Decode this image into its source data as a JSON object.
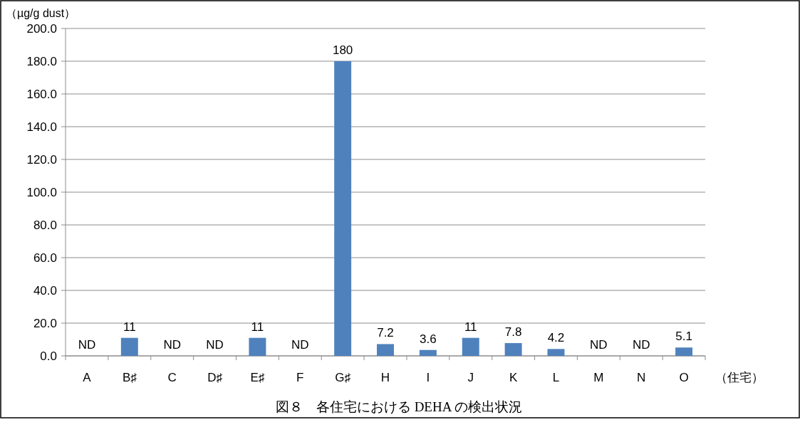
{
  "chart_data": {
    "type": "bar",
    "title": "図８　各住宅における DEHA の検出状況",
    "xlabel": "（住宅）",
    "ylabel": "（µg/g dust）",
    "categories": [
      "A",
      "B♯",
      "C",
      "D♯",
      "E♯",
      "F",
      "G♯",
      "H",
      "I",
      "J",
      "K",
      "L",
      "M",
      "N",
      "O"
    ],
    "values": [
      null,
      11,
      null,
      null,
      11,
      null,
      180,
      7.2,
      3.6,
      11,
      7.8,
      4.2,
      null,
      null,
      5.1
    ],
    "value_labels": [
      "ND",
      "11",
      "ND",
      "ND",
      "11",
      "ND",
      "180",
      "7.2",
      "3.6",
      "11",
      "7.8",
      "4.2",
      "ND",
      "ND",
      "5.1"
    ],
    "color": "#4f81bd",
    "ylim": [
      0,
      200
    ],
    "yticks": [
      {
        "value": 0,
        "label": "0.0"
      },
      {
        "value": 20,
        "label": "20.0"
      },
      {
        "value": 40,
        "label": "40.0"
      },
      {
        "value": 60,
        "label": "60.0"
      },
      {
        "value": 80,
        "label": "80.0"
      },
      {
        "value": 100,
        "label": "100.0"
      },
      {
        "value": 120,
        "label": "120.0"
      },
      {
        "value": 140,
        "label": "140.0"
      },
      {
        "value": 160,
        "label": "160.0"
      },
      {
        "value": 180,
        "label": "180.0"
      },
      {
        "value": 200,
        "label": "200.0"
      }
    ],
    "grid": "y"
  }
}
